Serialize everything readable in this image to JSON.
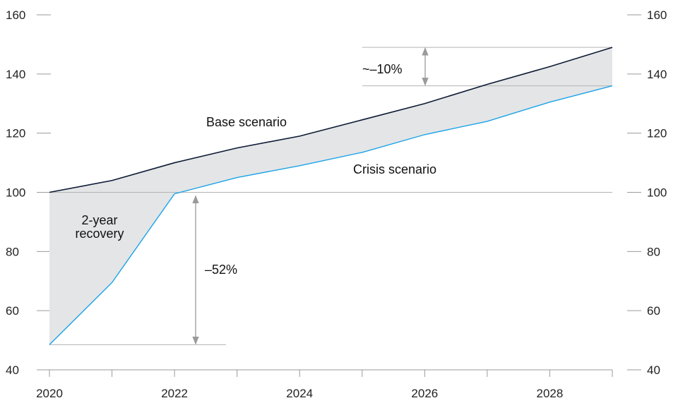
{
  "chart_data": {
    "type": "area",
    "title": "",
    "xlabel": "",
    "ylabel": "",
    "xlim": [
      2020,
      2029
    ],
    "ylim": [
      40,
      160
    ],
    "x": [
      2020,
      2021,
      2022,
      2023,
      2024,
      2025,
      2026,
      2027,
      2028,
      2029
    ],
    "series": [
      {
        "name": "Base scenario",
        "color": "#0b1a33",
        "values": [
          100,
          104,
          110,
          115,
          119,
          124.5,
          130,
          136.5,
          142.5,
          149
        ]
      },
      {
        "name": "Crisis scenario",
        "color": "#1aa3e8",
        "values": [
          48.5,
          69.5,
          99.5,
          105,
          109,
          113.5,
          119.5,
          124,
          130.5,
          136
        ]
      }
    ],
    "fill_color": "#e4e5e7",
    "x_ticks": [
      2020,
      2021,
      2022,
      2023,
      2024,
      2025,
      2026,
      2027,
      2028,
      2029
    ],
    "x_tick_labels": [
      "2020",
      "2022",
      "2024",
      "2026",
      "2028"
    ],
    "y_ticks": [
      40,
      60,
      80,
      100,
      120,
      140,
      160
    ],
    "y_tick_labels": [
      "40",
      "60",
      "80",
      "100",
      "120",
      "140",
      "160"
    ],
    "annotations": {
      "recovery_line1": "2-year",
      "recovery_line2": "recovery",
      "drop_label": "–52%",
      "gap_label": "~–10%"
    },
    "grid": false
  }
}
